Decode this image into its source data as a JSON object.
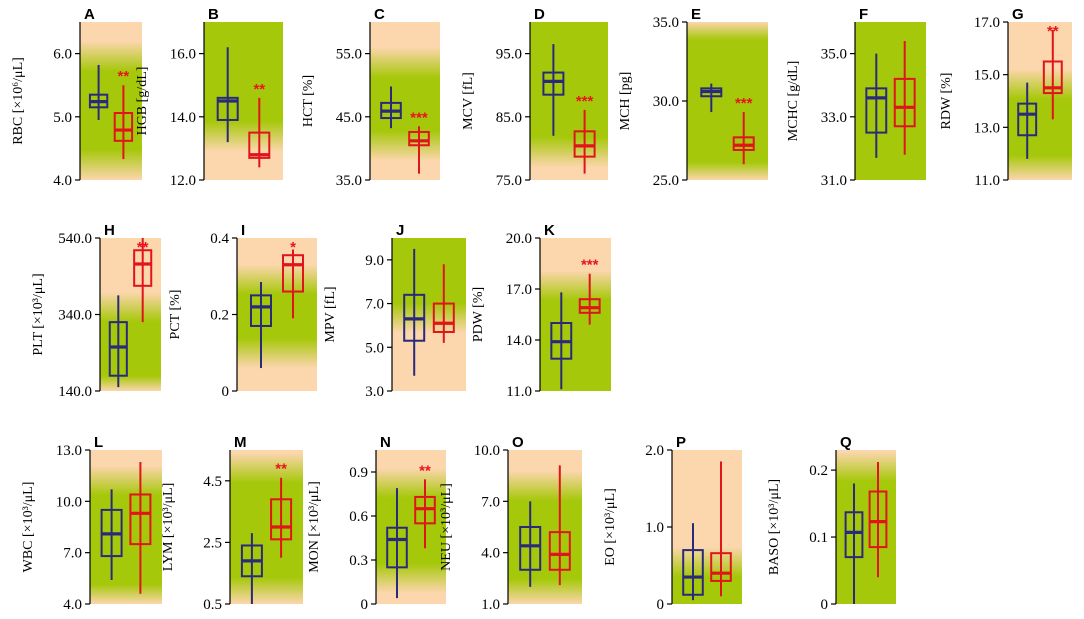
{
  "colors": {
    "control": "#2a2a7a",
    "patient": "#e0141b",
    "background_outer": "#fcd6ad",
    "background_normal": "#a6c80a",
    "axis": "#000000"
  },
  "chart_data": [
    {
      "panel": "A",
      "type": "boxplot",
      "ylabel": "RBC [×10⁶/μL]",
      "ylim": [
        4.0,
        6.5
      ],
      "ticks": [
        "4.0",
        "5.0",
        "6.0"
      ],
      "tick_values": [
        4.0,
        5.0,
        6.0
      ],
      "normal_range": [
        4.3,
        5.9
      ],
      "boxes": [
        {
          "group": "control",
          "min": 4.95,
          "q1": 5.15,
          "median": 5.24,
          "q3": 5.35,
          "max": 5.82
        },
        {
          "group": "patient",
          "min": 4.33,
          "q1": 4.62,
          "median": 4.79,
          "q3": 5.06,
          "max": 5.5
        }
      ],
      "significance": "**"
    },
    {
      "panel": "B",
      "type": "boxplot",
      "ylabel": "HGB [g/dL]",
      "ylim": [
        12.0,
        17.0
      ],
      "ticks": [
        "12.0",
        "14.0",
        "16.0"
      ],
      "tick_values": [
        12.0,
        14.0,
        16.0
      ],
      "normal_range": [
        13.5,
        17.5
      ],
      "boxes": [
        {
          "group": "control",
          "min": 13.2,
          "q1": 13.9,
          "median": 14.5,
          "q3": 14.6,
          "max": 16.2
        },
        {
          "group": "patient",
          "min": 12.4,
          "q1": 12.7,
          "median": 12.8,
          "q3": 13.5,
          "max": 14.6
        }
      ],
      "significance": "**"
    },
    {
      "panel": "C",
      "type": "boxplot",
      "ylabel": "HCT [%]",
      "ylim": [
        35.0,
        60.0
      ],
      "ticks": [
        "35.0",
        "45.0",
        "55.0"
      ],
      "tick_values": [
        35.0,
        45.0,
        55.0
      ],
      "normal_range": [
        41,
        53
      ],
      "boxes": [
        {
          "group": "control",
          "min": 43.2,
          "q1": 44.8,
          "median": 45.9,
          "q3": 47.2,
          "max": 49.8
        },
        {
          "group": "patient",
          "min": 36.0,
          "q1": 40.5,
          "median": 41.2,
          "q3": 42.6,
          "max": 43.5
        }
      ],
      "significance": "***"
    },
    {
      "panel": "D",
      "type": "boxplot",
      "ylabel": "MCV [fL]",
      "ylim": [
        75,
        100
      ],
      "ticks": [
        "75.0",
        "85.0",
        "95.0"
      ],
      "tick_values": [
        75,
        85,
        95
      ],
      "normal_range": [
        80,
        100
      ],
      "boxes": [
        {
          "group": "control",
          "min": 82.0,
          "q1": 88.5,
          "median": 90.6,
          "q3": 92.0,
          "max": 96.5
        },
        {
          "group": "patient",
          "min": 76.0,
          "q1": 78.7,
          "median": 80.4,
          "q3": 82.7,
          "max": 86.1
        }
      ],
      "significance": "***"
    },
    {
      "panel": "E",
      "type": "boxplot",
      "ylabel": "MCH [pg]",
      "ylim": [
        25.0,
        35.0
      ],
      "ticks": [
        "25.0",
        "30.0",
        "35.0"
      ],
      "tick_values": [
        25.0,
        30.0,
        35.0
      ],
      "normal_range": [
        25.4,
        34.6
      ],
      "boxes": [
        {
          "group": "control",
          "min": 29.3,
          "q1": 30.3,
          "median": 30.6,
          "q3": 30.8,
          "max": 31.1
        },
        {
          "group": "patient",
          "min": 26.0,
          "q1": 26.9,
          "median": 27.2,
          "q3": 27.7,
          "max": 29.3
        }
      ],
      "significance": "***"
    },
    {
      "panel": "F",
      "type": "boxplot",
      "ylabel": "MCHC [g/dL]",
      "ylim": [
        31.0,
        36.0
      ],
      "ticks": [
        "31.0",
        "33.0",
        "35.0"
      ],
      "tick_values": [
        31.0,
        33.0,
        35.0
      ],
      "normal_range": [
        31,
        37
      ],
      "boxes": [
        {
          "group": "control",
          "min": 31.7,
          "q1": 32.5,
          "median": 33.6,
          "q3": 33.9,
          "max": 35.0
        },
        {
          "group": "patient",
          "min": 31.8,
          "q1": 32.7,
          "median": 33.3,
          "q3": 34.2,
          "max": 35.4
        }
      ],
      "significance": ""
    },
    {
      "panel": "G",
      "type": "boxplot",
      "ylabel": "RDW [%]",
      "ylim": [
        11.0,
        17.0
      ],
      "ticks": [
        "11.0",
        "13.0",
        "15.0",
        "17.0"
      ],
      "tick_values": [
        11.0,
        13.0,
        15.0,
        17.0
      ],
      "normal_range": [
        11.5,
        14.5
      ],
      "boxes": [
        {
          "group": "control",
          "min": 11.8,
          "q1": 12.7,
          "median": 13.5,
          "q3": 13.9,
          "max": 14.7
        },
        {
          "group": "patient",
          "min": 13.3,
          "q1": 14.3,
          "median": 14.5,
          "q3": 15.5,
          "max": 16.7
        }
      ],
      "significance": "**"
    },
    {
      "panel": "H",
      "type": "boxplot",
      "ylabel": "PLT [×10³/μL]",
      "ylim": [
        140,
        540
      ],
      "ticks": [
        "140.0",
        "340.0",
        "540.0"
      ],
      "tick_values": [
        140,
        340,
        540
      ],
      "normal_range": [
        150,
        350
      ],
      "boxes": [
        {
          "group": "control",
          "min": 150,
          "q1": 180,
          "median": 255,
          "q3": 320,
          "max": 390
        },
        {
          "group": "patient",
          "min": 320,
          "q1": 415,
          "median": 472,
          "q3": 508,
          "max": 540
        }
      ],
      "significance": "**"
    },
    {
      "panel": "I",
      "type": "boxplot",
      "ylabel": "PCT [%]",
      "ylim": [
        0,
        0.4
      ],
      "ticks": [
        "0",
        "0.2",
        "0.4"
      ],
      "tick_values": [
        0,
        0.2,
        0.4
      ],
      "normal_range": [
        0.108,
        0.282
      ],
      "boxes": [
        {
          "group": "control",
          "min": 0.06,
          "q1": 0.17,
          "median": 0.22,
          "q3": 0.25,
          "max": 0.285
        },
        {
          "group": "patient",
          "min": 0.19,
          "q1": 0.26,
          "median": 0.33,
          "q3": 0.355,
          "max": 0.37
        }
      ],
      "significance": "*"
    },
    {
      "panel": "J",
      "type": "boxplot",
      "ylabel": "MPV [fL]",
      "ylim": [
        3.0,
        10.0
      ],
      "ticks": [
        "3.0",
        "5.0",
        "7.0",
        "9.0"
      ],
      "tick_values": [
        3.0,
        5.0,
        7.0,
        9.0
      ],
      "normal_range": [
        6.5,
        12.0
      ],
      "boxes": [
        {
          "group": "control",
          "min": 3.7,
          "q1": 5.3,
          "median": 6.3,
          "q3": 7.4,
          "max": 9.5
        },
        {
          "group": "patient",
          "min": 5.2,
          "q1": 5.7,
          "median": 6.1,
          "q3": 7.0,
          "max": 8.8
        }
      ],
      "significance": ""
    },
    {
      "panel": "K",
      "type": "boxplot",
      "ylabel": "PDW [%]",
      "ylim": [
        11.0,
        20.0
      ],
      "ticks": [
        "11.0",
        "14.0",
        "17.0",
        "20.0"
      ],
      "tick_values": [
        11.0,
        14.0,
        17.0,
        20.0
      ],
      "normal_range": [
        9.0,
        17.0
      ],
      "boxes": [
        {
          "group": "control",
          "min": 11.1,
          "q1": 12.9,
          "median": 13.9,
          "q3": 15.0,
          "max": 16.8
        },
        {
          "group": "patient",
          "min": 14.9,
          "q1": 15.6,
          "median": 15.9,
          "q3": 16.4,
          "max": 17.9
        }
      ],
      "significance": "***"
    },
    {
      "panel": "L",
      "type": "boxplot",
      "ylabel": "WBC [×10³/μL]",
      "ylim": [
        4.0,
        13.0
      ],
      "ticks": [
        "4.0",
        "7.0",
        "10.0",
        "13.0"
      ],
      "tick_values": [
        4.0,
        7.0,
        10.0,
        13.0
      ],
      "normal_range": [
        4.5,
        11.0
      ],
      "boxes": [
        {
          "group": "control",
          "min": 5.4,
          "q1": 6.8,
          "median": 8.1,
          "q3": 9.5,
          "max": 10.7
        },
        {
          "group": "patient",
          "min": 4.6,
          "q1": 7.5,
          "median": 9.3,
          "q3": 10.4,
          "max": 12.3
        }
      ],
      "significance": ""
    },
    {
      "panel": "M",
      "type": "boxplot",
      "ylabel": "LYM [×10³/μL]",
      "ylim": [
        0.5,
        5.5
      ],
      "ticks": [
        "0.5",
        "2.5",
        "4.5"
      ],
      "tick_values": [
        0.5,
        2.5,
        4.5
      ],
      "normal_range": [
        1.0,
        4.8
      ],
      "boxes": [
        {
          "group": "control",
          "min": 0.5,
          "q1": 1.4,
          "median": 1.9,
          "q3": 2.4,
          "max": 2.8
        },
        {
          "group": "patient",
          "min": 2.0,
          "q1": 2.6,
          "median": 3.0,
          "q3": 3.9,
          "max": 4.6
        }
      ],
      "significance": "**"
    },
    {
      "panel": "N",
      "type": "boxplot",
      "ylabel": "MON [×10³/μL]",
      "ylim": [
        0,
        1.05
      ],
      "ticks": [
        "0",
        "0.3",
        "0.6",
        "0.9"
      ],
      "tick_values": [
        0,
        0.3,
        0.6,
        0.9
      ],
      "normal_range": [
        0.2,
        0.8
      ],
      "boxes": [
        {
          "group": "control",
          "min": 0.04,
          "q1": 0.25,
          "median": 0.44,
          "q3": 0.52,
          "max": 0.79
        },
        {
          "group": "patient",
          "min": 0.38,
          "q1": 0.55,
          "median": 0.65,
          "q3": 0.73,
          "max": 0.85
        }
      ],
      "significance": "**"
    },
    {
      "panel": "O",
      "type": "boxplot",
      "ylabel": "NEU [×10³/μL]",
      "ylim": [
        1.0,
        10.0
      ],
      "ticks": [
        "1.0",
        "4.0",
        "7.0",
        "10.0"
      ],
      "tick_values": [
        1.0,
        4.0,
        7.0,
        10.0
      ],
      "normal_range": [
        1.8,
        7.7
      ],
      "boxes": [
        {
          "group": "control",
          "min": 2.0,
          "q1": 3.0,
          "median": 4.4,
          "q3": 5.5,
          "max": 7.0
        },
        {
          "group": "patient",
          "min": 2.1,
          "q1": 3.0,
          "median": 3.9,
          "q3": 5.2,
          "max": 9.1
        }
      ],
      "significance": ""
    },
    {
      "panel": "P",
      "type": "boxplot",
      "ylabel": "EO [×10³/μL]",
      "ylim": [
        0,
        2.0
      ],
      "ticks": [
        "0",
        "1.0",
        "2.0"
      ],
      "tick_values": [
        0,
        1.0,
        2.0
      ],
      "normal_range": [
        0,
        0.5
      ],
      "boxes": [
        {
          "group": "control",
          "min": 0.05,
          "q1": 0.12,
          "median": 0.35,
          "q3": 0.7,
          "max": 1.05
        },
        {
          "group": "patient",
          "min": 0.1,
          "q1": 0.3,
          "median": 0.4,
          "q3": 0.66,
          "max": 1.85
        }
      ],
      "significance": ""
    },
    {
      "panel": "Q",
      "type": "boxplot",
      "ylabel": "BASO [×10³/μL]",
      "ylim": [
        0,
        0.23
      ],
      "ticks": [
        "0",
        "0.1",
        "0.2"
      ],
      "tick_values": [
        0,
        0.1,
        0.2
      ],
      "normal_range": [
        0,
        0.2
      ],
      "boxes": [
        {
          "group": "control",
          "min": 0.0,
          "q1": 0.07,
          "median": 0.107,
          "q3": 0.137,
          "max": 0.18
        },
        {
          "group": "patient",
          "min": 0.04,
          "q1": 0.085,
          "median": 0.123,
          "q3": 0.168,
          "max": 0.212
        }
      ],
      "significance": ""
    }
  ]
}
